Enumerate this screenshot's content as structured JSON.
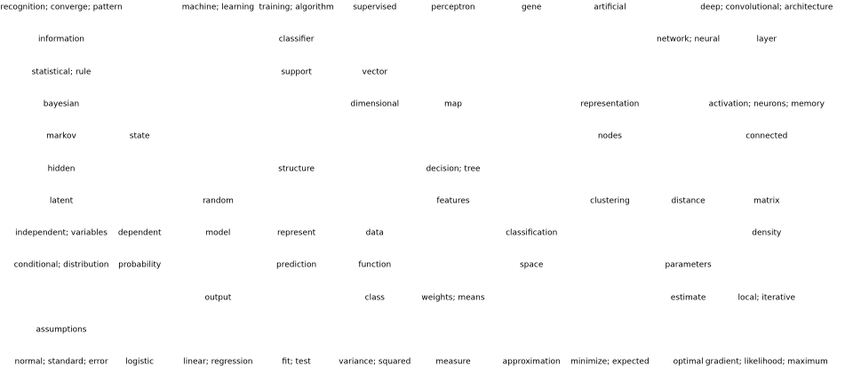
{
  "grid": {
    "columns": 10,
    "rows": 12,
    "cells": [
      {
        "row": 0,
        "col": 0,
        "text": "recognition; converge; pattern"
      },
      {
        "row": 0,
        "col": 2,
        "text": "machine; learning"
      },
      {
        "row": 0,
        "col": 3,
        "text": "training; algorithm"
      },
      {
        "row": 0,
        "col": 4,
        "text": "supervised"
      },
      {
        "row": 0,
        "col": 5,
        "text": "perceptron"
      },
      {
        "row": 0,
        "col": 6,
        "text": "gene"
      },
      {
        "row": 0,
        "col": 7,
        "text": "artificial"
      },
      {
        "row": 0,
        "col": 9,
        "text": "deep; convolutional; architecture"
      },
      {
        "row": 1,
        "col": 0,
        "text": "information"
      },
      {
        "row": 1,
        "col": 3,
        "text": "classifier"
      },
      {
        "row": 1,
        "col": 8,
        "text": "network; neural"
      },
      {
        "row": 1,
        "col": 9,
        "text": "layer"
      },
      {
        "row": 2,
        "col": 0,
        "text": "statistical; rule"
      },
      {
        "row": 2,
        "col": 3,
        "text": "support"
      },
      {
        "row": 2,
        "col": 4,
        "text": "vector"
      },
      {
        "row": 3,
        "col": 0,
        "text": "bayesian"
      },
      {
        "row": 3,
        "col": 4,
        "text": "dimensional"
      },
      {
        "row": 3,
        "col": 5,
        "text": "map"
      },
      {
        "row": 3,
        "col": 7,
        "text": "representation"
      },
      {
        "row": 3,
        "col": 9,
        "text": "activation; neurons; memory"
      },
      {
        "row": 4,
        "col": 0,
        "text": "markov"
      },
      {
        "row": 4,
        "col": 1,
        "text": "state"
      },
      {
        "row": 4,
        "col": 7,
        "text": "nodes"
      },
      {
        "row": 4,
        "col": 9,
        "text": "connected"
      },
      {
        "row": 5,
        "col": 0,
        "text": "hidden"
      },
      {
        "row": 5,
        "col": 3,
        "text": "structure"
      },
      {
        "row": 5,
        "col": 5,
        "text": "decision; tree"
      },
      {
        "row": 6,
        "col": 0,
        "text": "latent"
      },
      {
        "row": 6,
        "col": 2,
        "text": "random"
      },
      {
        "row": 6,
        "col": 5,
        "text": "features"
      },
      {
        "row": 6,
        "col": 7,
        "text": "clustering"
      },
      {
        "row": 6,
        "col": 8,
        "text": "distance"
      },
      {
        "row": 6,
        "col": 9,
        "text": "matrix"
      },
      {
        "row": 7,
        "col": 0,
        "text": "independent; variables"
      },
      {
        "row": 7,
        "col": 1,
        "text": "dependent"
      },
      {
        "row": 7,
        "col": 2,
        "text": "model"
      },
      {
        "row": 7,
        "col": 3,
        "text": "represent"
      },
      {
        "row": 7,
        "col": 4,
        "text": "data"
      },
      {
        "row": 7,
        "col": 6,
        "text": "classification"
      },
      {
        "row": 7,
        "col": 9,
        "text": "density"
      },
      {
        "row": 8,
        "col": 0,
        "text": "conditional; distribution"
      },
      {
        "row": 8,
        "col": 1,
        "text": "probability"
      },
      {
        "row": 8,
        "col": 3,
        "text": "prediction"
      },
      {
        "row": 8,
        "col": 4,
        "text": "function"
      },
      {
        "row": 8,
        "col": 6,
        "text": "space"
      },
      {
        "row": 8,
        "col": 8,
        "text": "parameters"
      },
      {
        "row": 9,
        "col": 2,
        "text": "output"
      },
      {
        "row": 9,
        "col": 4,
        "text": "class"
      },
      {
        "row": 9,
        "col": 5,
        "text": "weights; means"
      },
      {
        "row": 9,
        "col": 8,
        "text": "estimate"
      },
      {
        "row": 9,
        "col": 9,
        "text": "local; iterative"
      },
      {
        "row": 10,
        "col": 0,
        "text": "assumptions"
      },
      {
        "row": 11,
        "col": 0,
        "text": "normal; standard; error"
      },
      {
        "row": 11,
        "col": 1,
        "text": "logistic"
      },
      {
        "row": 11,
        "col": 2,
        "text": "linear; regression"
      },
      {
        "row": 11,
        "col": 3,
        "text": "fit; test"
      },
      {
        "row": 11,
        "col": 4,
        "text": "variance; squared"
      },
      {
        "row": 11,
        "col": 5,
        "text": "measure"
      },
      {
        "row": 11,
        "col": 6,
        "text": "approximation"
      },
      {
        "row": 11,
        "col": 7,
        "text": "minimize; expected"
      },
      {
        "row": 11,
        "col": 8,
        "text": "optimal"
      },
      {
        "row": 11,
        "col": 9,
        "text": "gradient; likelihood; maximum"
      }
    ]
  }
}
